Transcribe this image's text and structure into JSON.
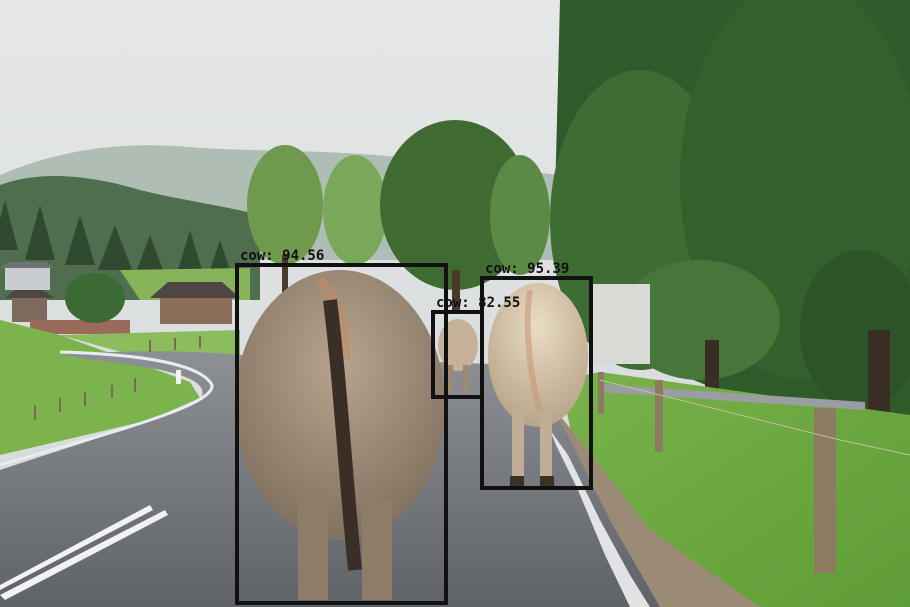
{
  "detections": [
    {
      "id": "det-1",
      "label": "cow: 94.56"
    },
    {
      "id": "det-2",
      "label": "cow: 95.39"
    },
    {
      "id": "det-3",
      "label": "cow: 82.55"
    }
  ]
}
